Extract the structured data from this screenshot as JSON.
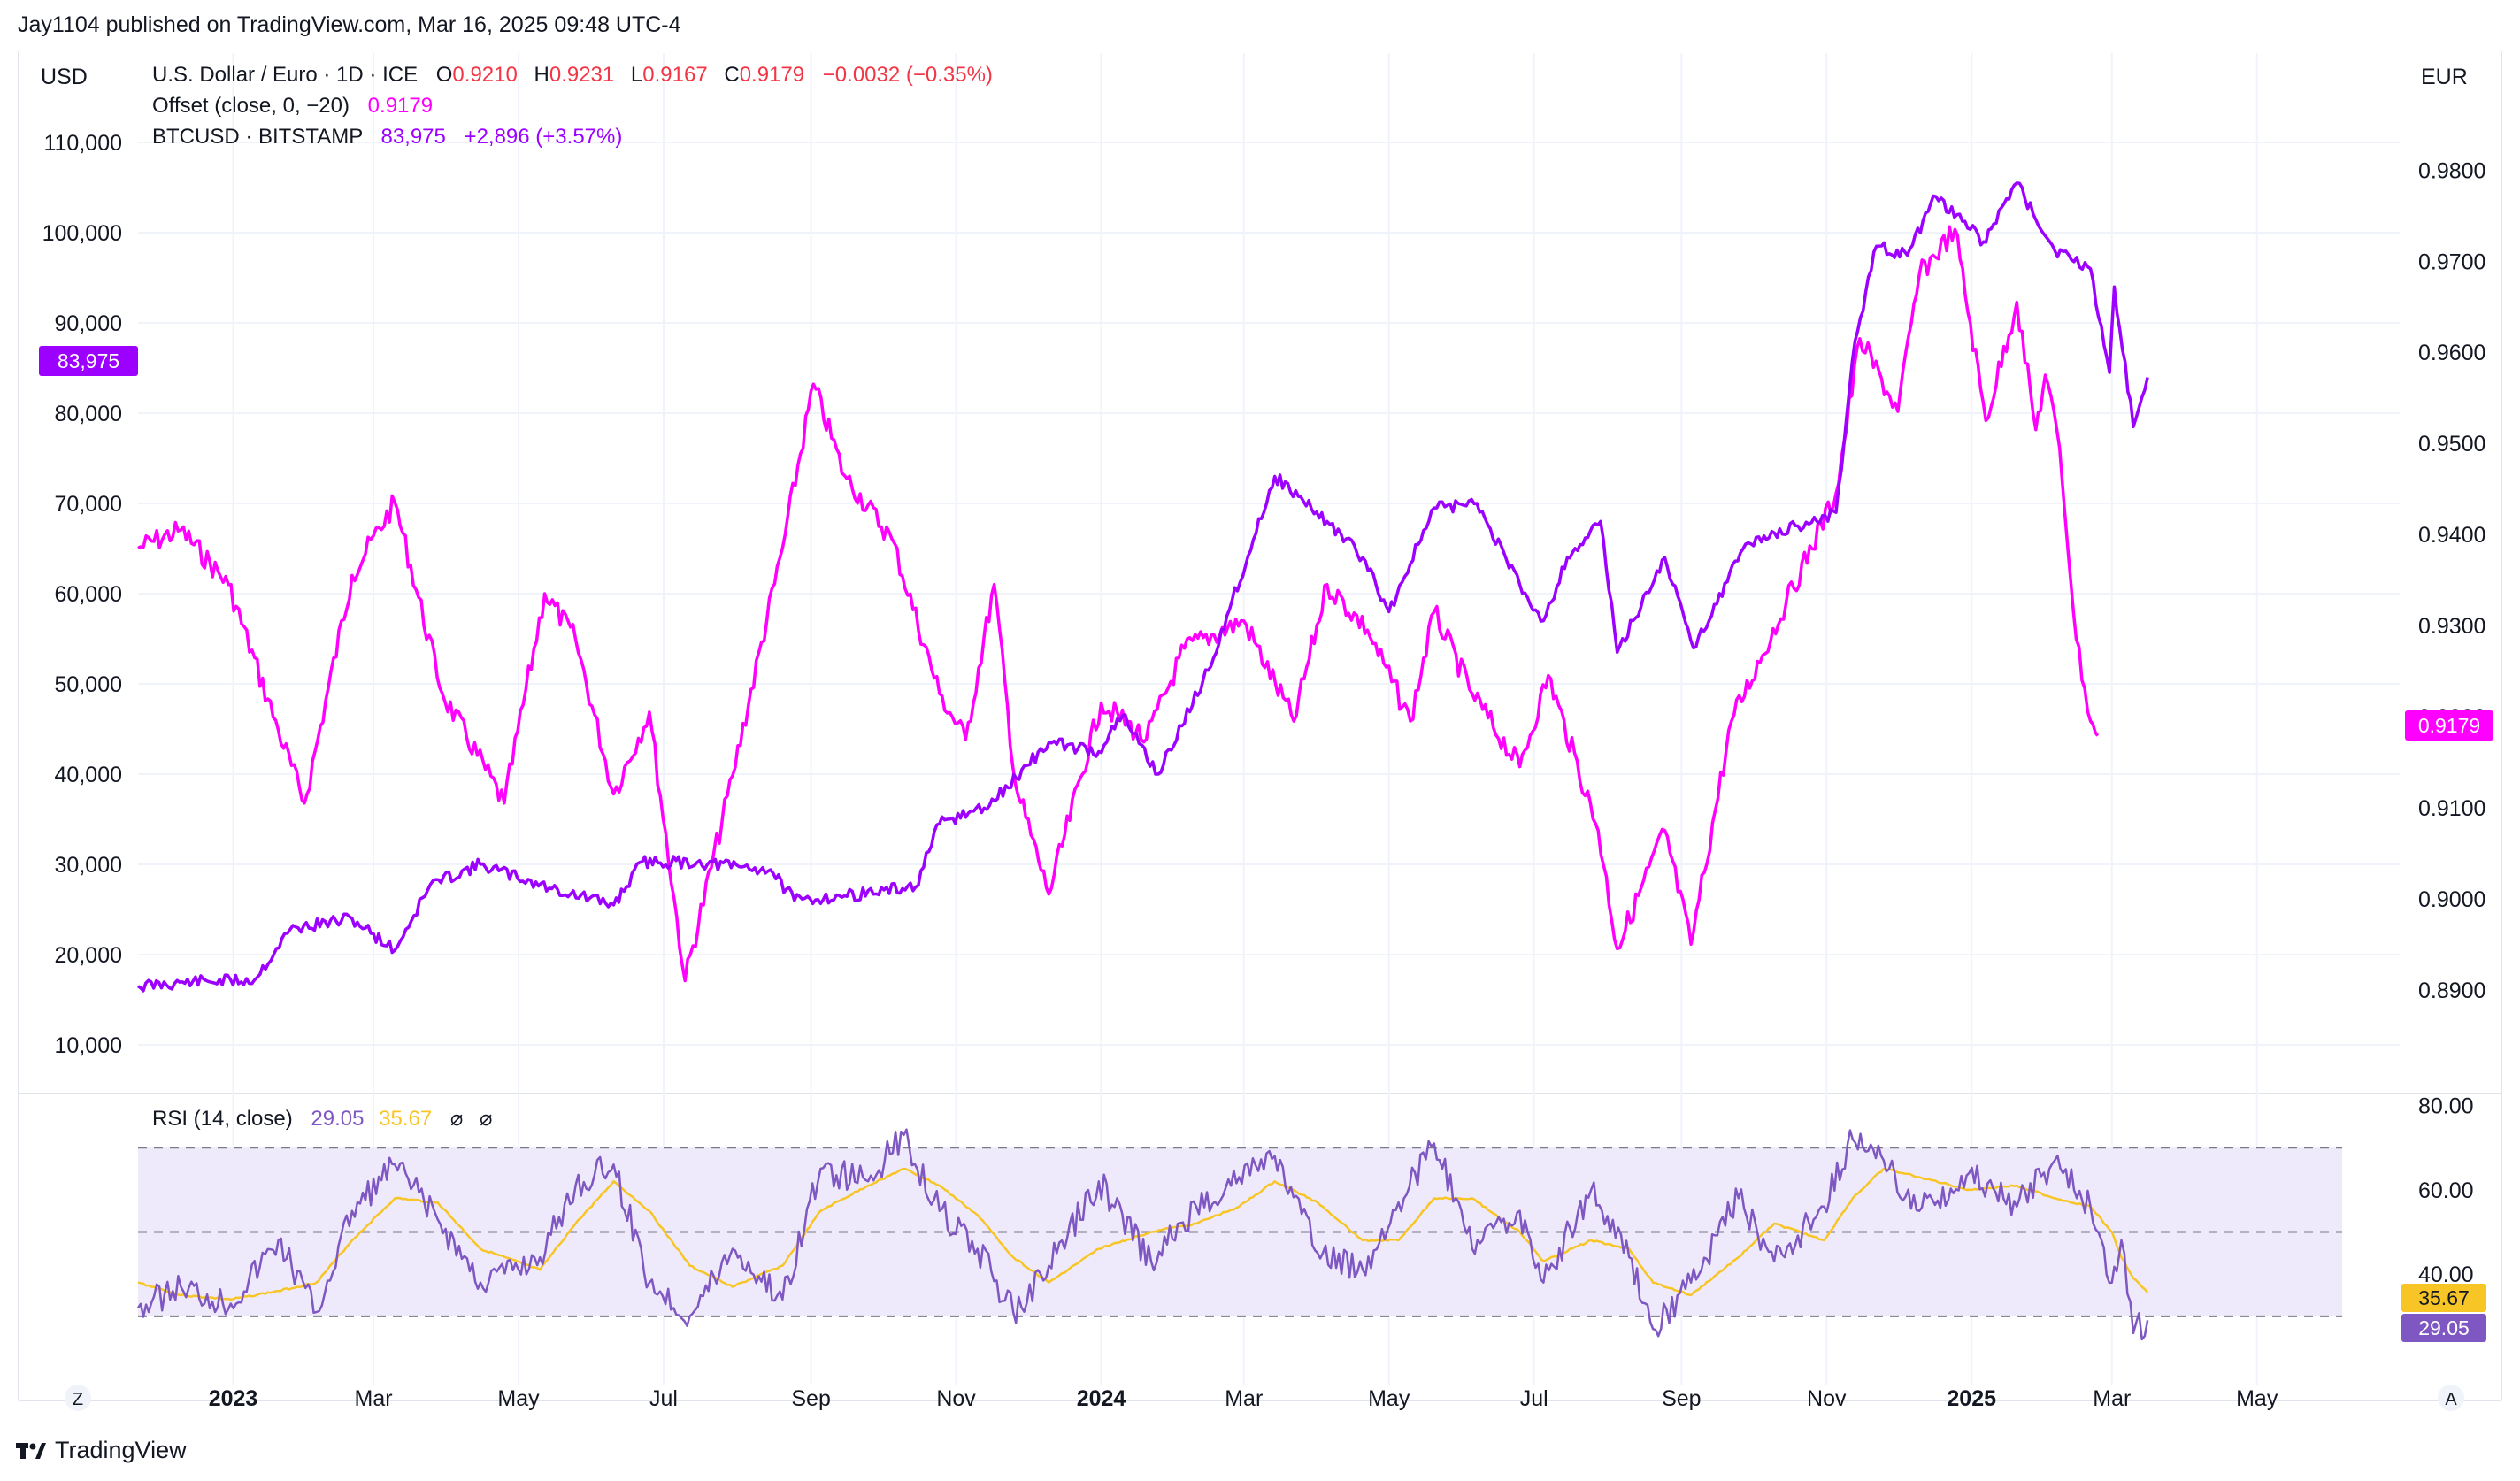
{
  "publisher": "Jay1104 published on TradingView.com, Mar 16, 2025 09:48 UTC-4",
  "brand": "TradingView",
  "colors": {
    "eur": "#ff00ff",
    "btc": "#9c00ff",
    "rsi": "#7e57c2",
    "rsi_ma": "#f7c525",
    "rsi_band": "#efeafb",
    "grid": "#f0f3fa",
    "text": "#131722"
  },
  "legend": {
    "main": {
      "name": "U.S. Dollar / Euro · 1D · ICE",
      "O": "0.9210",
      "H": "0.9231",
      "L": "0.9167",
      "C": "0.9179",
      "change": "−0.0032 (−0.35%)"
    },
    "offset": {
      "name": "Offset (close, 0, −20)",
      "value": "0.9179"
    },
    "btc": {
      "name": "BTCUSD · BITSTAMP",
      "value": "83,975",
      "change": "+2,896 (+3.57%)"
    },
    "rsi": {
      "name": "RSI (14, close)",
      "value": "29.05",
      "ma": "35.67"
    }
  },
  "left_axis_label": "USD",
  "right_axis_label": "EUR",
  "bottom_left_label": "Z",
  "bottom_right_label": "A",
  "price_tags": {
    "btc": "83,975",
    "eur": "0.9179",
    "rsi_ma": "35.67",
    "rsi": "29.05"
  },
  "chart_data": {
    "type": "line",
    "x_axis": {
      "ticks": [
        "2023",
        "Mar",
        "May",
        "Jul",
        "Sep",
        "Nov",
        "2024",
        "Mar",
        "May",
        "Jul",
        "Sep",
        "Nov",
        "2025",
        "Mar",
        "May"
      ],
      "bold": [
        true,
        false,
        false,
        false,
        false,
        false,
        true,
        false,
        false,
        false,
        false,
        false,
        true,
        false,
        false
      ]
    },
    "left_axis": {
      "unit": "USD",
      "ylim": [
        5000,
        115000
      ],
      "ticks": [
        "110,000",
        "100,000",
        "90,000",
        "80,000",
        "70,000",
        "60,000",
        "50,000",
        "40,000",
        "30,000",
        "20,000",
        "10,000"
      ]
    },
    "right_axis": {
      "unit": "EUR",
      "ylim": [
        0.879,
        0.988
      ],
      "ticks": [
        "0.9800",
        "0.9700",
        "0.9600",
        "0.9500",
        "0.9400",
        "0.9300",
        "0.9200",
        "0.9100",
        "0.9000",
        "0.8900"
      ]
    },
    "series": [
      {
        "name": "BTCUSD · BITSTAMP",
        "axis": "left",
        "dates": [
          "2022-11-22",
          "2022-12-15",
          "2023-01-10",
          "2023-01-25",
          "2023-02-20",
          "2023-03-10",
          "2023-03-25",
          "2023-04-15",
          "2023-05-15",
          "2023-06-10",
          "2023-06-22",
          "2023-07-15",
          "2023-08-15",
          "2023-08-25",
          "2023-09-15",
          "2023-10-15",
          "2023-10-25",
          "2023-11-15",
          "2023-12-10",
          "2023-12-31",
          "2024-01-10",
          "2024-01-25",
          "2024-02-15",
          "2024-03-05",
          "2024-03-14",
          "2024-04-05",
          "2024-04-20",
          "2024-05-01",
          "2024-05-20",
          "2024-06-07",
          "2024-06-25",
          "2024-07-05",
          "2024-07-15",
          "2024-07-29",
          "2024-08-05",
          "2024-08-25",
          "2024-09-06",
          "2024-09-28",
          "2024-10-20",
          "2024-11-05",
          "2024-11-13",
          "2024-11-22",
          "2024-12-05",
          "2024-12-17",
          "2025-01-06",
          "2025-01-20",
          "2025-02-05",
          "2025-02-20",
          "2025-02-28",
          "2025-03-02",
          "2025-03-10",
          "2025-03-16"
        ],
        "values": [
          16500,
          17000,
          17200,
          22800,
          24000,
          20500,
          27800,
          30000,
          27300,
          25500,
          30300,
          30200,
          29400,
          26000,
          26500,
          27500,
          34500,
          36500,
          43500,
          42500,
          46500,
          40000,
          51500,
          66000,
          73000,
          68000,
          64000,
          58000,
          69500,
          70000,
          61000,
          57000,
          64000,
          68000,
          53500,
          64000,
          54000,
          65500,
          67500,
          69000,
          88000,
          98500,
          97500,
          104000,
          99000,
          105500,
          98000,
          96000,
          84500,
          94000,
          78500,
          83975
        ]
      },
      {
        "name": "Offset (close, 0, −20)",
        "axis": "right",
        "dates": [
          "2022-11-22",
          "2022-12-10",
          "2022-12-30",
          "2023-01-20",
          "2023-01-31",
          "2023-02-20",
          "2023-03-10",
          "2023-03-30",
          "2023-04-25",
          "2023-05-12",
          "2023-05-25",
          "2023-06-10",
          "2023-06-25",
          "2023-07-10",
          "2023-07-30",
          "2023-08-20",
          "2023-09-02",
          "2023-09-15",
          "2023-10-05",
          "2023-10-25",
          "2023-11-05",
          "2023-11-17",
          "2023-11-26",
          "2023-12-10",
          "2024-01-01",
          "2024-01-20",
          "2024-02-05",
          "2024-03-01",
          "2024-03-22",
          "2024-04-05",
          "2024-04-22",
          "2024-05-10",
          "2024-05-20",
          "2024-06-05",
          "2024-06-25",
          "2024-07-07",
          "2024-07-28",
          "2024-08-05",
          "2024-08-25",
          "2024-09-05",
          "2024-09-22",
          "2024-10-15",
          "2024-11-05",
          "2024-11-15",
          "2024-12-01",
          "2024-12-10",
          "2024-12-25",
          "2025-01-07",
          "2025-01-20",
          "2025-01-28",
          "2025-02-01",
          "2025-02-07",
          "2025-02-14",
          "2025-02-20",
          "2025-02-23"
        ],
        "values": [
          0.9385,
          0.9405,
          0.9345,
          0.9185,
          0.9105,
          0.9355,
          0.9435,
          0.9225,
          0.9105,
          0.9335,
          0.9285,
          0.9115,
          0.9205,
          0.891,
          0.9135,
          0.9385,
          0.9565,
          0.9465,
          0.9395,
          0.9225,
          0.9175,
          0.9345,
          0.9125,
          0.9005,
          0.9215,
          0.9175,
          0.9275,
          0.9305,
          0.9195,
          0.9345,
          0.9295,
          0.9195,
          0.9315,
          0.9225,
          0.9145,
          0.9245,
          0.9075,
          0.8945,
          0.9075,
          0.895,
          0.9195,
          0.9325,
          0.9445,
          0.9615,
          0.9535,
          0.9685,
          0.9735,
          0.9525,
          0.9655,
          0.9515,
          0.9575,
          0.9495,
          0.9285,
          0.9195,
          0.9179
        ]
      },
      {
        "name": "RSI (14, close)",
        "pane": "rsi",
        "ylim": [
          18,
          82
        ],
        "ticks": [
          "80.00",
          "60.00",
          "40.00"
        ],
        "levels": [
          70,
          50,
          30
        ],
        "dates": [
          "2022-11-22",
          "2022-12-10",
          "2022-12-31",
          "2023-01-20",
          "2023-02-05",
          "2023-02-20",
          "2023-03-10",
          "2023-03-28",
          "2023-04-15",
          "2023-05-10",
          "2023-05-25",
          "2023-06-10",
          "2023-06-25",
          "2023-07-12",
          "2023-07-30",
          "2023-08-20",
          "2023-09-05",
          "2023-09-25",
          "2023-10-10",
          "2023-10-25",
          "2023-11-10",
          "2023-11-25",
          "2023-12-10",
          "2023-12-31",
          "2024-01-22",
          "2024-02-10",
          "2024-02-28",
          "2024-03-14",
          "2024-04-01",
          "2024-04-20",
          "2024-05-05",
          "2024-05-20",
          "2024-06-05",
          "2024-06-25",
          "2024-07-05",
          "2024-07-25",
          "2024-08-10",
          "2024-08-20",
          "2024-09-05",
          "2024-09-25",
          "2024-10-10",
          "2024-10-31",
          "2024-11-12",
          "2024-11-25",
          "2024-12-10",
          "2024-12-31",
          "2025-01-20",
          "2025-02-05",
          "2025-02-20",
          "2025-03-01",
          "2025-03-05",
          "2025-03-10",
          "2025-03-16"
        ],
        "values": [
          32,
          37,
          33,
          48,
          31,
          55,
          66,
          53,
          38,
          44,
          61,
          66,
          38,
          30,
          46,
          34,
          65,
          62,
          73,
          55,
          46,
          31,
          42,
          62,
          43,
          56,
          63,
          68,
          45,
          41,
          57,
          71,
          46,
          55,
          38,
          60,
          44,
          27,
          38,
          58,
          43,
          56,
          72,
          67,
          55,
          64,
          56,
          67,
          56,
          38,
          48,
          26,
          29.05
        ],
        "ma_values": [
          38,
          35,
          34,
          36,
          38,
          48,
          58,
          57,
          46,
          41,
          52,
          62,
          55,
          42,
          37,
          42,
          55,
          61,
          65,
          61,
          54,
          44,
          38,
          46,
          50,
          52,
          56,
          62,
          57,
          48,
          48,
          58,
          58,
          50,
          43,
          48,
          46,
          38,
          35,
          44,
          52,
          48,
          58,
          65,
          63,
          60,
          61,
          58,
          56,
          50,
          44,
          39,
          35.67
        ]
      }
    ]
  }
}
